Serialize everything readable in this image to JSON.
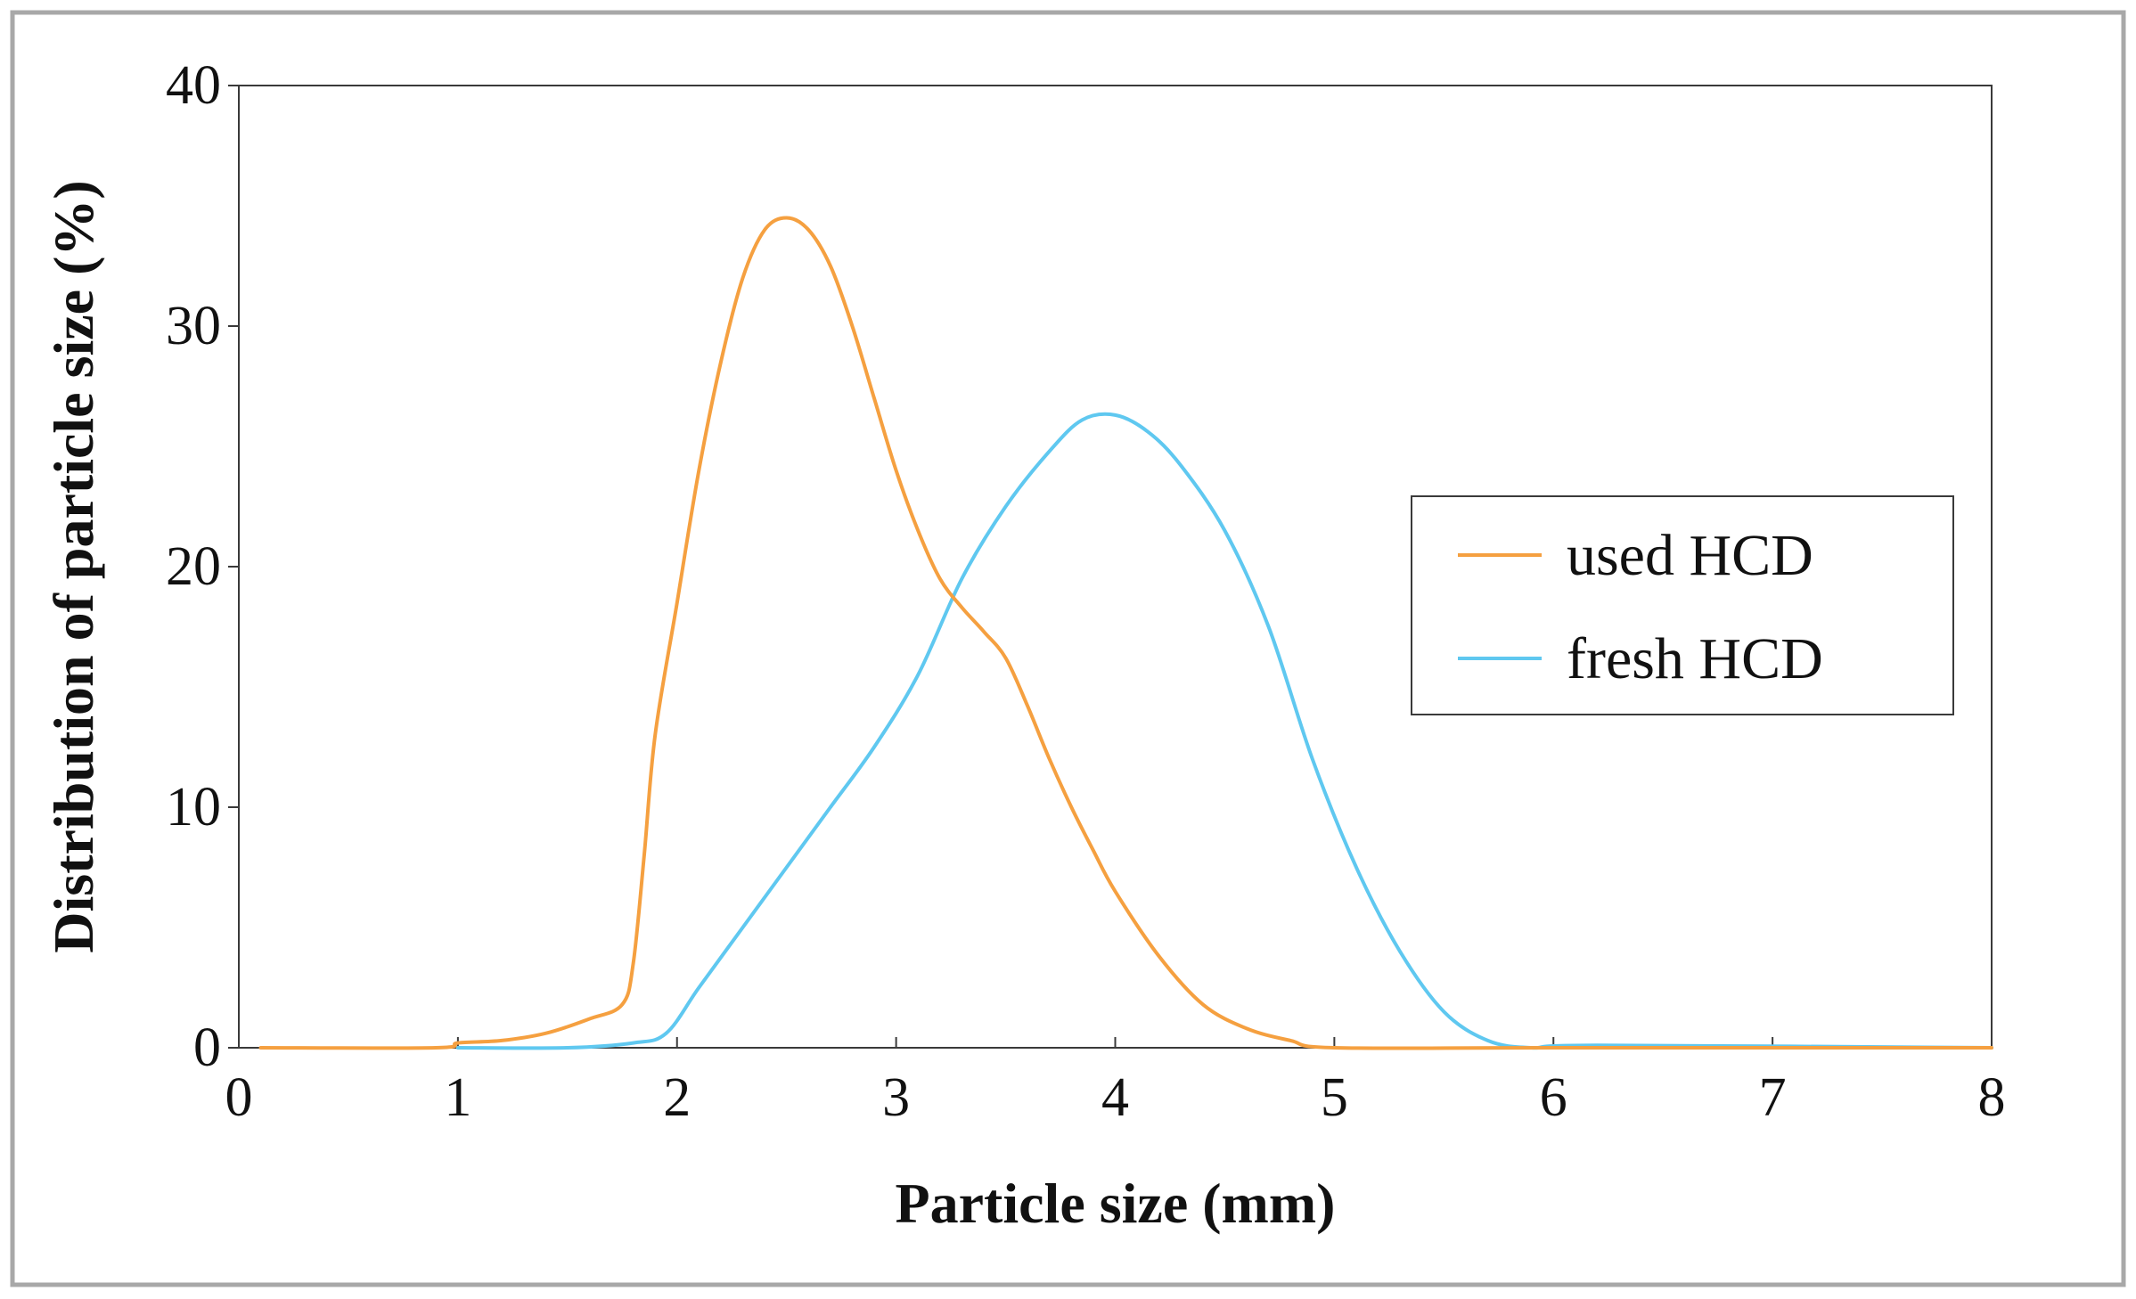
{
  "chart_data": {
    "type": "line",
    "title": "",
    "xlabel": "Particle size (mm)",
    "ylabel": "Distribution of particle size (%)",
    "xlim": [
      0,
      8
    ],
    "ylim": [
      0,
      40
    ],
    "xticks": [
      "0",
      "1",
      "2",
      "3",
      "4",
      "5",
      "6",
      "7",
      "8"
    ],
    "yticks": [
      "0",
      "10",
      "20",
      "30",
      "40"
    ],
    "grid": false,
    "legend_position": "right",
    "series": [
      {
        "name": "used HCD",
        "color": "#f5a040",
        "points": [
          [
            0.1,
            0
          ],
          [
            0.9,
            0
          ],
          [
            1.0,
            0.2
          ],
          [
            1.2,
            0.3
          ],
          [
            1.4,
            0.6
          ],
          [
            1.6,
            1.2
          ],
          [
            1.75,
            1.8
          ],
          [
            1.8,
            3.5
          ],
          [
            1.85,
            8
          ],
          [
            1.9,
            13
          ],
          [
            2.0,
            18.5
          ],
          [
            2.1,
            24
          ],
          [
            2.2,
            28.5
          ],
          [
            2.3,
            32
          ],
          [
            2.4,
            34
          ],
          [
            2.5,
            34.5
          ],
          [
            2.6,
            34
          ],
          [
            2.7,
            32.5
          ],
          [
            2.8,
            30
          ],
          [
            2.9,
            27
          ],
          [
            3.0,
            24
          ],
          [
            3.1,
            21.5
          ],
          [
            3.2,
            19.5
          ],
          [
            3.3,
            18.3
          ],
          [
            3.4,
            17.3
          ],
          [
            3.5,
            16.2
          ],
          [
            3.6,
            14.2
          ],
          [
            3.7,
            12
          ],
          [
            3.8,
            10
          ],
          [
            3.9,
            8.2
          ],
          [
            4.0,
            6.5
          ],
          [
            4.2,
            3.8
          ],
          [
            4.4,
            1.8
          ],
          [
            4.6,
            0.8
          ],
          [
            4.8,
            0.3
          ],
          [
            5.0,
            0
          ],
          [
            6.0,
            0
          ],
          [
            8.0,
            0
          ]
        ]
      },
      {
        "name": "fresh HCD",
        "color": "#5fc8f0",
        "points": [
          [
            1.0,
            0
          ],
          [
            1.5,
            0
          ],
          [
            1.8,
            0.2
          ],
          [
            1.95,
            0.6
          ],
          [
            2.1,
            2.5
          ],
          [
            2.3,
            5
          ],
          [
            2.5,
            7.5
          ],
          [
            2.7,
            10
          ],
          [
            2.9,
            12.5
          ],
          [
            3.1,
            15.5
          ],
          [
            3.3,
            19.5
          ],
          [
            3.5,
            22.5
          ],
          [
            3.7,
            24.8
          ],
          [
            3.85,
            26.1
          ],
          [
            4.0,
            26.3
          ],
          [
            4.15,
            25.6
          ],
          [
            4.3,
            24.2
          ],
          [
            4.5,
            21.5
          ],
          [
            4.7,
            17.5
          ],
          [
            4.9,
            12
          ],
          [
            5.1,
            7.5
          ],
          [
            5.3,
            4
          ],
          [
            5.5,
            1.5
          ],
          [
            5.7,
            0.3
          ],
          [
            5.9,
            0
          ],
          [
            6.2,
            0.1
          ],
          [
            8.0,
            0
          ]
        ]
      }
    ]
  }
}
